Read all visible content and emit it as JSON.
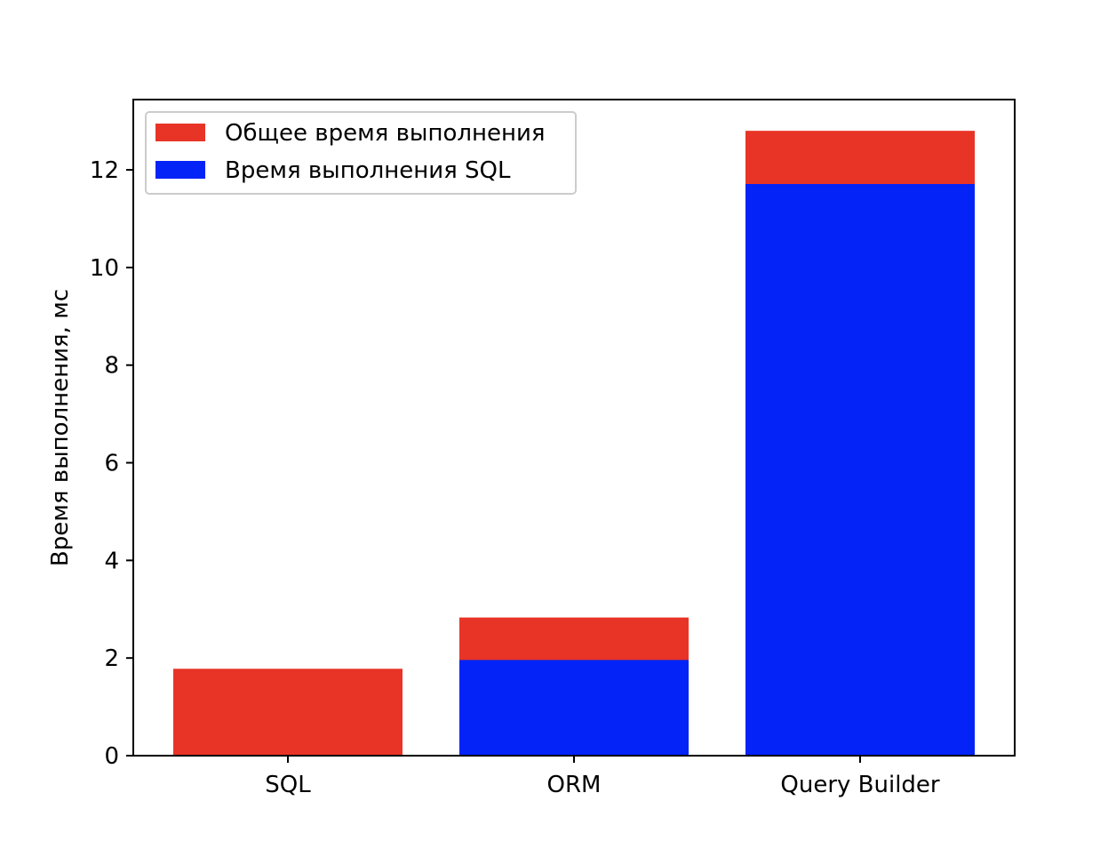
{
  "chart_data": {
    "type": "bar",
    "stacked": false,
    "overlay": true,
    "title": "",
    "xlabel": "",
    "ylabel": "Время выполнения, мс",
    "categories": [
      "SQL",
      "ORM",
      "Query Builder"
    ],
    "series": [
      {
        "name": "Общее время выполнения",
        "values": [
          1.78,
          2.83,
          12.8
        ],
        "color": "#e83426"
      },
      {
        "name": "Время выполнения SQL",
        "values": [
          0.0,
          1.96,
          11.71
        ],
        "color": "#0323f7"
      }
    ],
    "ylim": [
      0,
      13.44
    ],
    "yticks": [
      0,
      2,
      4,
      6,
      8,
      10,
      12
    ],
    "grid": false,
    "legend_position": "top-left"
  }
}
